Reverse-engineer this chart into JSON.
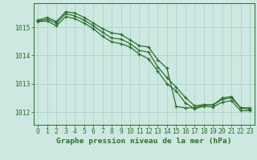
{
  "title": "Graphe pression niveau de la mer (hPa)",
  "bg_color": "#cce8e0",
  "grid_color": "#aacccc",
  "line_color": "#2d6e2d",
  "x_ticks": [
    0,
    1,
    2,
    3,
    4,
    5,
    6,
    7,
    8,
    9,
    10,
    11,
    12,
    13,
    14,
    15,
    16,
    17,
    18,
    19,
    20,
    21,
    22,
    23
  ],
  "y_ticks": [
    1012,
    1013,
    1014,
    1015
  ],
  "ylim": [
    1011.55,
    1015.85
  ],
  "xlim": [
    -0.5,
    23.5
  ],
  "line1": [
    1015.25,
    1015.35,
    1015.2,
    1015.55,
    1015.5,
    1015.35,
    1015.15,
    1014.95,
    1014.8,
    1014.75,
    1014.55,
    1014.35,
    1014.3,
    1013.85,
    1013.55,
    1012.2,
    1012.15,
    1012.15,
    1012.25,
    1012.25,
    1012.5,
    1012.55,
    1012.15,
    1012.15
  ],
  "line2": [
    1015.22,
    1015.28,
    1015.15,
    1015.48,
    1015.4,
    1015.25,
    1015.05,
    1014.82,
    1014.62,
    1014.58,
    1014.42,
    1014.18,
    1014.12,
    1013.6,
    1013.22,
    1012.88,
    1012.52,
    1012.22,
    1012.26,
    1012.25,
    1012.45,
    1012.5,
    1012.15,
    1012.1
  ],
  "line3": [
    1015.2,
    1015.22,
    1015.05,
    1015.38,
    1015.3,
    1015.15,
    1014.95,
    1014.68,
    1014.48,
    1014.42,
    1014.3,
    1014.05,
    1013.88,
    1013.45,
    1013.0,
    1012.75,
    1012.32,
    1012.12,
    1012.2,
    1012.18,
    1012.35,
    1012.4,
    1012.05,
    1012.05
  ],
  "marker": "+",
  "markersize": 3.5,
  "linewidth": 0.9,
  "markeredgewidth": 0.9,
  "title_fontsize": 6.8,
  "tick_fontsize": 5.8
}
